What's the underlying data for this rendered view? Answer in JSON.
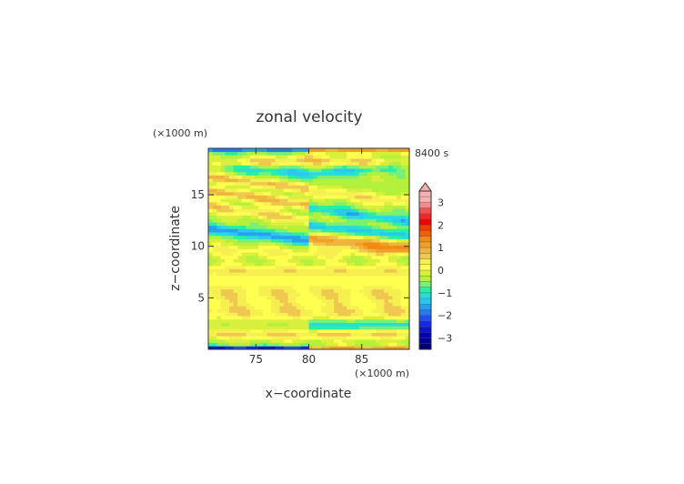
{
  "chart_data": {
    "type": "heatmap",
    "title": "zonal velocity",
    "time_label": "8400 s",
    "xlabel": "x−coordinate",
    "ylabel": "z−coordinate",
    "x_unit": "(×1000 m)",
    "y_unit": "(×1000 m)",
    "xlim": [
      70.5,
      89.5
    ],
    "ylim": [
      0,
      19.5
    ],
    "x_ticks": [
      75,
      80,
      85
    ],
    "y_ticks": [
      5,
      10,
      15
    ],
    "colorbar": {
      "ticks": [
        3,
        2,
        1,
        0,
        -1,
        -2,
        -3
      ],
      "levels": [
        {
          "lo": 3.25,
          "hi": 3.5,
          "color": "#f6b0b0"
        },
        {
          "lo": 3.0,
          "hi": 3.25,
          "color": "#f6b0b0"
        },
        {
          "lo": 2.75,
          "hi": 3.0,
          "color": "#f08c8c"
        },
        {
          "lo": 2.5,
          "hi": 2.75,
          "color": "#f05050"
        },
        {
          "lo": 2.25,
          "hi": 2.5,
          "color": "#f02828"
        },
        {
          "lo": 2.0,
          "hi": 2.25,
          "color": "#f00000"
        },
        {
          "lo": 1.75,
          "hi": 2.0,
          "color": "#f03c00"
        },
        {
          "lo": 1.5,
          "hi": 1.75,
          "color": "#f06000"
        },
        {
          "lo": 1.25,
          "hi": 1.5,
          "color": "#f08c14"
        },
        {
          "lo": 1.0,
          "hi": 1.25,
          "color": "#f0a028"
        },
        {
          "lo": 0.75,
          "hi": 1.0,
          "color": "#f0b43c"
        },
        {
          "lo": 0.5,
          "hi": 0.75,
          "color": "#f0c850"
        },
        {
          "lo": 0.25,
          "hi": 0.5,
          "color": "#f5f050"
        },
        {
          "lo": 0.0,
          "hi": 0.25,
          "color": "#ffff50"
        },
        {
          "lo": -0.25,
          "hi": 0.0,
          "color": "#d8f03c"
        },
        {
          "lo": -0.5,
          "hi": -0.25,
          "color": "#b4f03c"
        },
        {
          "lo": -0.75,
          "hi": -0.5,
          "color": "#78f078"
        },
        {
          "lo": -1.0,
          "hi": -0.75,
          "color": "#28f0a0"
        },
        {
          "lo": -1.25,
          "hi": -1.0,
          "color": "#28dcdc"
        },
        {
          "lo": -1.5,
          "hi": -1.25,
          "color": "#28c8f0"
        },
        {
          "lo": -1.75,
          "hi": -1.5,
          "color": "#28a0f0"
        },
        {
          "lo": -2.0,
          "hi": -1.75,
          "color": "#2878f0"
        },
        {
          "lo": -2.25,
          "hi": -2.0,
          "color": "#1e50f0"
        },
        {
          "lo": -2.5,
          "hi": -2.25,
          "color": "#1428f0"
        },
        {
          "lo": -2.75,
          "hi": -2.5,
          "color": "#0a14c8"
        },
        {
          "lo": -3.0,
          "hi": -2.75,
          "color": "#0000b4"
        },
        {
          "lo": -3.25,
          "hi": -3.0,
          "color": "#000096"
        },
        {
          "lo": -3.5,
          "hi": -3.25,
          "color": "#00006e"
        }
      ],
      "extend": "max"
    },
    "field": {
      "nx": 48,
      "nz": 60,
      "center_x": 80,
      "base_value": -0.35,
      "bands": [
        {
          "z": 0.1,
          "w": 0.25,
          "amp": -2.2,
          "tilt": 0.0,
          "side": "left"
        },
        {
          "z": 0.1,
          "w": 0.25,
          "amp": 1.4,
          "tilt": 0.0,
          "side": "right"
        },
        {
          "z": 1.4,
          "w": 0.5,
          "amp": 0.9,
          "tilt": 0.02,
          "side": "both"
        },
        {
          "z": 2.4,
          "w": 0.45,
          "amp": -0.9,
          "tilt": 0.0,
          "side": "right"
        },
        {
          "z": 3.6,
          "w": 0.8,
          "amp": 0.7,
          "tilt": 0.0,
          "side": "both"
        },
        {
          "z": 5.5,
          "w": 1.3,
          "amp": 0.75,
          "tilt": 0.0,
          "side": "both"
        },
        {
          "z": 7.6,
          "w": 0.7,
          "amp": 0.7,
          "tilt": 0.0,
          "side": "both"
        },
        {
          "z": 9.3,
          "w": 0.6,
          "amp": 0.6,
          "tilt": 0.04,
          "side": "both"
        },
        {
          "z": 10.6,
          "w": 0.5,
          "amp": -1.3,
          "tilt": 0.12,
          "side": "left"
        },
        {
          "z": 10.8,
          "w": 0.6,
          "amp": 1.4,
          "tilt": -0.1,
          "side": "right"
        },
        {
          "z": 12.0,
          "w": 0.45,
          "amp": -1.0,
          "tilt": -0.1,
          "side": "right"
        },
        {
          "z": 12.5,
          "w": 0.5,
          "amp": 0.9,
          "tilt": 0.15,
          "side": "left"
        },
        {
          "z": 14.0,
          "w": 0.5,
          "amp": 1.2,
          "tilt": 0.15,
          "side": "left"
        },
        {
          "z": 13.8,
          "w": 0.45,
          "amp": -1.0,
          "tilt": -0.15,
          "side": "right"
        },
        {
          "z": 15.6,
          "w": 0.45,
          "amp": 1.1,
          "tilt": 0.12,
          "side": "left"
        },
        {
          "z": 15.4,
          "w": 0.5,
          "amp": 0.8,
          "tilt": -0.12,
          "side": "right"
        },
        {
          "z": 17.0,
          "w": 0.5,
          "amp": -0.9,
          "tilt": 0.1,
          "side": "both"
        },
        {
          "z": 18.4,
          "w": 0.5,
          "amp": 1.0,
          "tilt": -0.05,
          "side": "both"
        },
        {
          "z": 19.4,
          "w": 0.3,
          "amp": -1.5,
          "tilt": 0.0,
          "side": "left"
        },
        {
          "z": 19.4,
          "w": 0.3,
          "amp": 1.5,
          "tilt": 0.0,
          "side": "right"
        }
      ]
    }
  }
}
